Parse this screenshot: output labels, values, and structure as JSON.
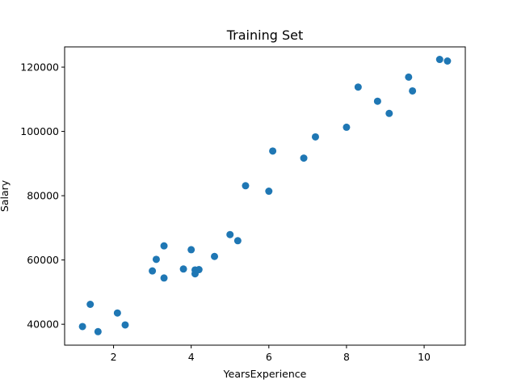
{
  "chart_data": {
    "type": "scatter",
    "title": "Training Set",
    "xlabel": "YearsExperience",
    "ylabel": "Salary",
    "xlim": [
      0.74,
      11.06
    ],
    "ylim": [
      33500,
      126300
    ],
    "xticks": [
      2,
      4,
      6,
      8,
      10
    ],
    "yticks": [
      40000,
      60000,
      80000,
      100000,
      120000
    ],
    "grid": false,
    "marker_color": "#1f77b4",
    "points": [
      {
        "x": 1.2,
        "y": 39300
      },
      {
        "x": 1.4,
        "y": 46200
      },
      {
        "x": 1.6,
        "y": 37700
      },
      {
        "x": 2.1,
        "y": 43500
      },
      {
        "x": 2.3,
        "y": 39800
      },
      {
        "x": 3.0,
        "y": 56600
      },
      {
        "x": 3.1,
        "y": 60200
      },
      {
        "x": 3.3,
        "y": 54400
      },
      {
        "x": 3.3,
        "y": 64400
      },
      {
        "x": 3.8,
        "y": 57200
      },
      {
        "x": 4.0,
        "y": 63200
      },
      {
        "x": 4.1,
        "y": 56900
      },
      {
        "x": 4.1,
        "y": 55700
      },
      {
        "x": 4.2,
        "y": 57000
      },
      {
        "x": 4.6,
        "y": 61100
      },
      {
        "x": 5.0,
        "y": 67900
      },
      {
        "x": 5.2,
        "y": 66000
      },
      {
        "x": 5.4,
        "y": 83100
      },
      {
        "x": 6.0,
        "y": 81400
      },
      {
        "x": 6.1,
        "y": 93900
      },
      {
        "x": 6.9,
        "y": 91700
      },
      {
        "x": 7.2,
        "y": 98300
      },
      {
        "x": 8.0,
        "y": 101300
      },
      {
        "x": 8.3,
        "y": 113800
      },
      {
        "x": 8.8,
        "y": 109400
      },
      {
        "x": 9.1,
        "y": 105600
      },
      {
        "x": 9.6,
        "y": 116900
      },
      {
        "x": 9.7,
        "y": 112600
      },
      {
        "x": 10.4,
        "y": 122400
      },
      {
        "x": 10.6,
        "y": 121900
      }
    ]
  }
}
